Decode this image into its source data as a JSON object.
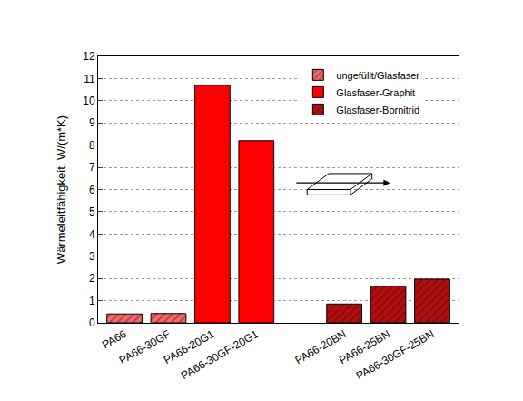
{
  "chart_data": {
    "type": "bar",
    "y_label": "Wärmeleitfähigkeit, W/(m*K)",
    "categories": [
      "PA66",
      "PA66-30GF",
      "PA66-20G1",
      "PA66-30GF-20G1",
      null,
      "PA66-20BN",
      "PA66-25BN",
      "PA66-30GF-25BN"
    ],
    "series": [
      {
        "name": "ungefüllt/Glasfaser",
        "color": "#f26b6b",
        "marker": "hatched",
        "values": [
          0.4,
          0.42,
          null,
          null,
          null,
          null,
          null,
          null
        ]
      },
      {
        "name": "Glasfaser-Graphit",
        "color": "#ff0000",
        "marker": "solid",
        "values": [
          null,
          null,
          10.7,
          8.2,
          null,
          null,
          null,
          null
        ]
      },
      {
        "name": "Glasfaser-Bornitrid",
        "color": "#b01010",
        "marker": "hatched",
        "values": [
          null,
          null,
          null,
          null,
          null,
          0.85,
          1.65,
          1.97
        ]
      }
    ],
    "ylim": [
      0,
      12
    ],
    "yticks": [
      0,
      1,
      2,
      3,
      4,
      5,
      6,
      7,
      8,
      9,
      10,
      11,
      12
    ],
    "grid": true,
    "legend": "upper right"
  }
}
